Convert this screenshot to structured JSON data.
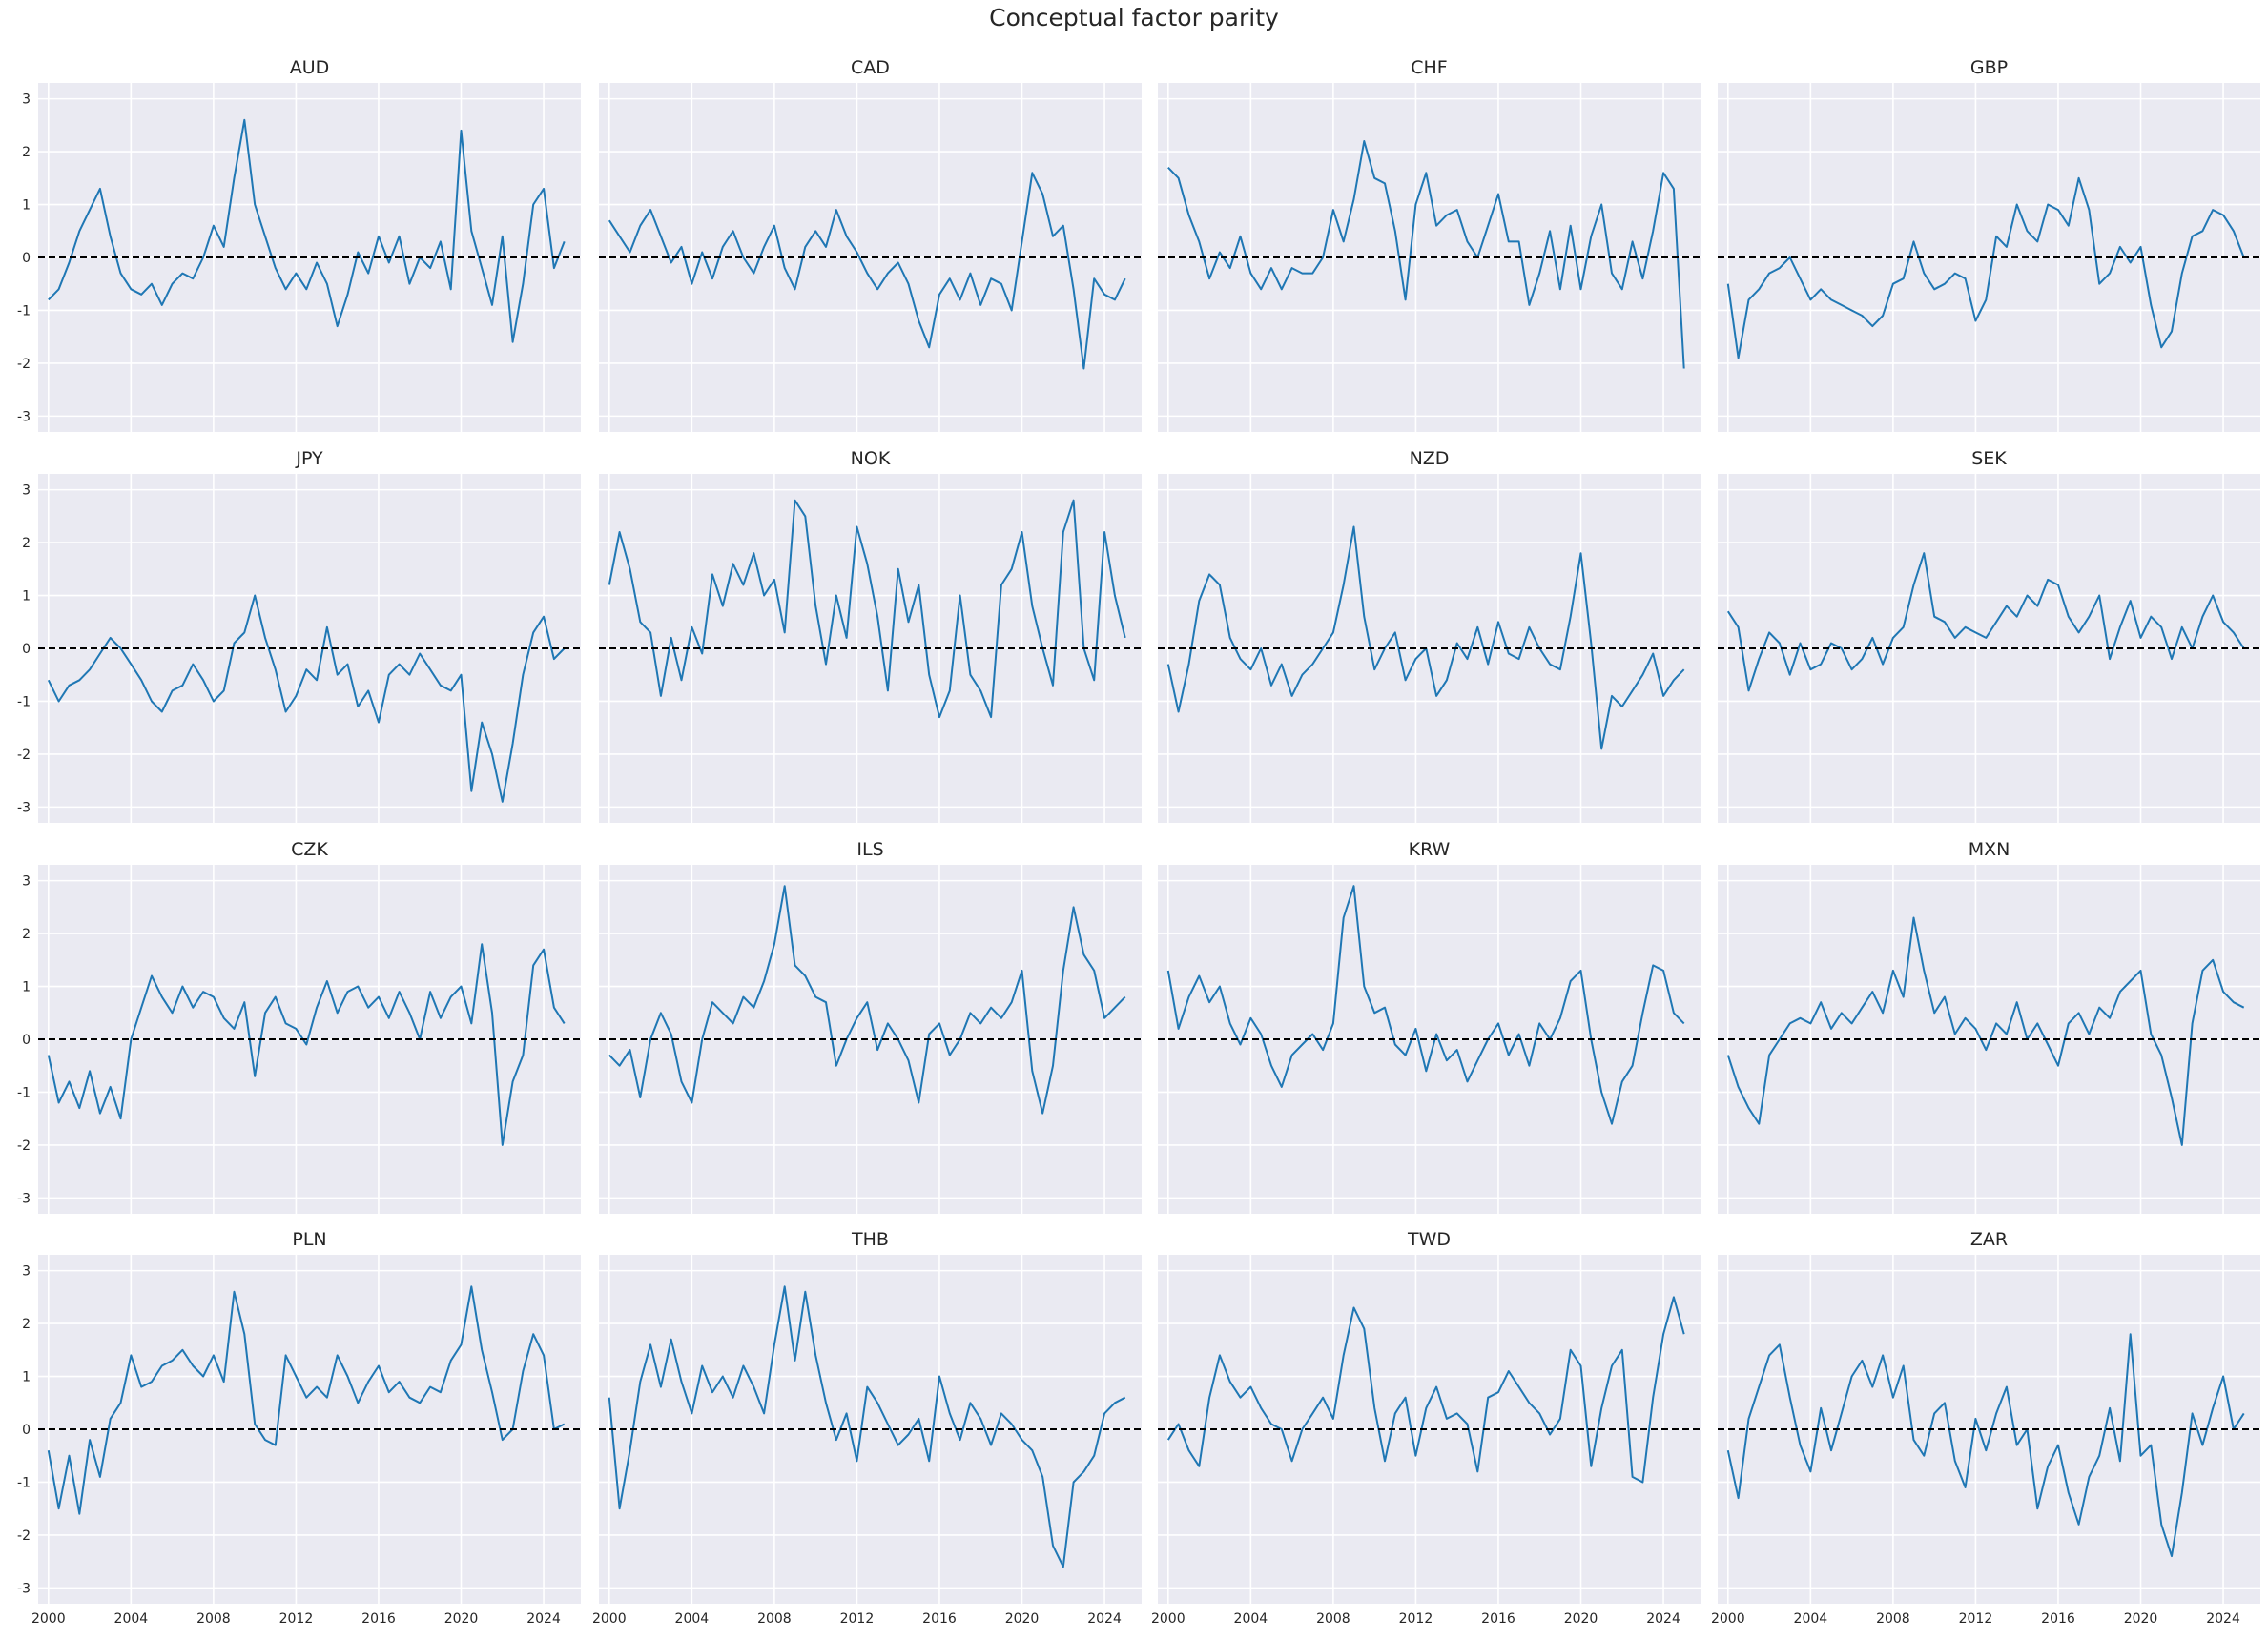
{
  "figure": {
    "title": "Conceptual factor parity"
  },
  "colors": {
    "line": "#1f77b4",
    "panel_bg": "#eaeaf2",
    "grid": "#ffffff",
    "zero_line": "#000000"
  },
  "chart_data": {
    "type": "line",
    "layout": "4x4 grid of small multiples, shared x and y axes",
    "xlim": [
      1999.5,
      2025.8
    ],
    "ylim": [
      -3.3,
      3.3
    ],
    "xticks": [
      "2000",
      "2004",
      "2008",
      "2012",
      "2016",
      "2020",
      "2024"
    ],
    "yticks": [
      "-3",
      "-2",
      "-1",
      "0",
      "1",
      "2",
      "3"
    ],
    "grid": true,
    "reference_line": {
      "y": 0,
      "style": "dashed"
    },
    "x_years": [
      2000.0,
      2000.5,
      2001.0,
      2001.5,
      2002.0,
      2002.5,
      2003.0,
      2003.5,
      2004.0,
      2004.5,
      2005.0,
      2005.5,
      2006.0,
      2006.5,
      2007.0,
      2007.5,
      2008.0,
      2008.5,
      2009.0,
      2009.5,
      2010.0,
      2010.5,
      2011.0,
      2011.5,
      2012.0,
      2012.5,
      2013.0,
      2013.5,
      2014.0,
      2014.5,
      2015.0,
      2015.5,
      2016.0,
      2016.5,
      2017.0,
      2017.5,
      2018.0,
      2018.5,
      2019.0,
      2019.5,
      2020.0,
      2020.5,
      2021.0,
      2021.5,
      2022.0,
      2022.5,
      2023.0,
      2023.5,
      2024.0,
      2024.5,
      2025.0
    ],
    "series": [
      {
        "name": "AUD",
        "values": [
          -0.8,
          -0.6,
          -0.1,
          0.5,
          0.9,
          1.3,
          0.4,
          -0.3,
          -0.6,
          -0.7,
          -0.5,
          -0.9,
          -0.5,
          -0.3,
          -0.4,
          0.0,
          0.6,
          0.2,
          1.5,
          2.6,
          1.0,
          0.4,
          -0.2,
          -0.6,
          -0.3,
          -0.6,
          -0.1,
          -0.5,
          -1.3,
          -0.7,
          0.1,
          -0.3,
          0.4,
          -0.1,
          0.4,
          -0.5,
          0.0,
          -0.2,
          0.3,
          -0.6,
          2.4,
          0.5,
          -0.2,
          -0.9,
          0.4,
          -1.6,
          -0.5,
          1.0,
          1.3,
          -0.2,
          0.3
        ]
      },
      {
        "name": "CAD",
        "values": [
          0.7,
          0.4,
          0.1,
          0.6,
          0.9,
          0.4,
          -0.1,
          0.2,
          -0.5,
          0.1,
          -0.4,
          0.2,
          0.5,
          0.0,
          -0.3,
          0.2,
          0.6,
          -0.2,
          -0.6,
          0.2,
          0.5,
          0.2,
          0.9,
          0.4,
          0.1,
          -0.3,
          -0.6,
          -0.3,
          -0.1,
          -0.5,
          -1.2,
          -1.7,
          -0.7,
          -0.4,
          -0.8,
          -0.3,
          -0.9,
          -0.4,
          -0.5,
          -1.0,
          0.3,
          1.6,
          1.2,
          0.4,
          0.6,
          -0.6,
          -2.1,
          -0.4,
          -0.7,
          -0.8,
          -0.4
        ]
      },
      {
        "name": "CHF",
        "values": [
          1.7,
          1.5,
          0.8,
          0.3,
          -0.4,
          0.1,
          -0.2,
          0.4,
          -0.3,
          -0.6,
          -0.2,
          -0.6,
          -0.2,
          -0.3,
          -0.3,
          0.0,
          0.9,
          0.3,
          1.1,
          2.2,
          1.5,
          1.4,
          0.5,
          -0.8,
          1.0,
          1.6,
          0.6,
          0.8,
          0.9,
          0.3,
          0.0,
          0.6,
          1.2,
          0.3,
          0.3,
          -0.9,
          -0.3,
          0.5,
          -0.6,
          0.6,
          -0.6,
          0.4,
          1.0,
          -0.3,
          -0.6,
          0.3,
          -0.4,
          0.5,
          1.6,
          1.3,
          -2.1
        ]
      },
      {
        "name": "GBP",
        "values": [
          -0.5,
          -1.9,
          -0.8,
          -0.6,
          -0.3,
          -0.2,
          0.0,
          -0.4,
          -0.8,
          -0.6,
          -0.8,
          -0.9,
          -1.0,
          -1.1,
          -1.3,
          -1.1,
          -0.5,
          -0.4,
          0.3,
          -0.3,
          -0.6,
          -0.5,
          -0.3,
          -0.4,
          -1.2,
          -0.8,
          0.4,
          0.2,
          1.0,
          0.5,
          0.3,
          1.0,
          0.9,
          0.6,
          1.5,
          0.9,
          -0.5,
          -0.3,
          0.2,
          -0.1,
          0.2,
          -0.9,
          -1.7,
          -1.4,
          -0.3,
          0.4,
          0.5,
          0.9,
          0.8,
          0.5,
          0.0
        ]
      },
      {
        "name": "JPY",
        "values": [
          -0.6,
          -1.0,
          -0.7,
          -0.6,
          -0.4,
          -0.1,
          0.2,
          0.0,
          -0.3,
          -0.6,
          -1.0,
          -1.2,
          -0.8,
          -0.7,
          -0.3,
          -0.6,
          -1.0,
          -0.8,
          0.1,
          0.3,
          1.0,
          0.2,
          -0.4,
          -1.2,
          -0.9,
          -0.4,
          -0.6,
          0.4,
          -0.5,
          -0.3,
          -1.1,
          -0.8,
          -1.4,
          -0.5,
          -0.3,
          -0.5,
          -0.1,
          -0.4,
          -0.7,
          -0.8,
          -0.5,
          -2.7,
          -1.4,
          -2.0,
          -2.9,
          -1.8,
          -0.5,
          0.3,
          0.6,
          -0.2,
          0.0
        ]
      },
      {
        "name": "NOK",
        "values": [
          1.2,
          2.2,
          1.5,
          0.5,
          0.3,
          -0.9,
          0.2,
          -0.6,
          0.4,
          -0.1,
          1.4,
          0.8,
          1.6,
          1.2,
          1.8,
          1.0,
          1.3,
          0.3,
          2.8,
          2.5,
          0.8,
          -0.3,
          1.0,
          0.2,
          2.3,
          1.6,
          0.6,
          -0.8,
          1.5,
          0.5,
          1.2,
          -0.5,
          -1.3,
          -0.8,
          1.0,
          -0.5,
          -0.8,
          -1.3,
          1.2,
          1.5,
          2.2,
          0.8,
          0.0,
          -0.7,
          2.2,
          2.8,
          0.0,
          -0.6,
          2.2,
          1.0,
          0.2
        ]
      },
      {
        "name": "NZD",
        "values": [
          -0.3,
          -1.2,
          -0.3,
          0.9,
          1.4,
          1.2,
          0.2,
          -0.2,
          -0.4,
          0.0,
          -0.7,
          -0.3,
          -0.9,
          -0.5,
          -0.3,
          0.0,
          0.3,
          1.2,
          2.3,
          0.6,
          -0.4,
          0.0,
          0.3,
          -0.6,
          -0.2,
          0.0,
          -0.9,
          -0.6,
          0.1,
          -0.2,
          0.4,
          -0.3,
          0.5,
          -0.1,
          -0.2,
          0.4,
          0.0,
          -0.3,
          -0.4,
          0.6,
          1.8,
          0.1,
          -1.9,
          -0.9,
          -1.1,
          -0.8,
          -0.5,
          -0.1,
          -0.9,
          -0.6,
          -0.4
        ]
      },
      {
        "name": "SEK",
        "values": [
          0.7,
          0.4,
          -0.8,
          -0.2,
          0.3,
          0.1,
          -0.5,
          0.1,
          -0.4,
          -0.3,
          0.1,
          0.0,
          -0.4,
          -0.2,
          0.2,
          -0.3,
          0.2,
          0.4,
          1.2,
          1.8,
          0.6,
          0.5,
          0.2,
          0.4,
          0.3,
          0.2,
          0.5,
          0.8,
          0.6,
          1.0,
          0.8,
          1.3,
          1.2,
          0.6,
          0.3,
          0.6,
          1.0,
          -0.2,
          0.4,
          0.9,
          0.2,
          0.6,
          0.4,
          -0.2,
          0.4,
          0.0,
          0.6,
          1.0,
          0.5,
          0.3,
          0.0
        ]
      },
      {
        "name": "CZK",
        "values": [
          -0.3,
          -1.2,
          -0.8,
          -1.3,
          -0.6,
          -1.4,
          -0.9,
          -1.5,
          0.0,
          0.6,
          1.2,
          0.8,
          0.5,
          1.0,
          0.6,
          0.9,
          0.8,
          0.4,
          0.2,
          0.7,
          -0.7,
          0.5,
          0.8,
          0.3,
          0.2,
          -0.1,
          0.6,
          1.1,
          0.5,
          0.9,
          1.0,
          0.6,
          0.8,
          0.4,
          0.9,
          0.5,
          0.0,
          0.9,
          0.4,
          0.8,
          1.0,
          0.3,
          1.8,
          0.5,
          -2.0,
          -0.8,
          -0.3,
          1.4,
          1.7,
          0.6,
          0.3
        ]
      },
      {
        "name": "ILS",
        "values": [
          -0.3,
          -0.5,
          -0.2,
          -1.1,
          0.0,
          0.5,
          0.1,
          -0.8,
          -1.2,
          0.0,
          0.7,
          0.5,
          0.3,
          0.8,
          0.6,
          1.1,
          1.8,
          2.9,
          1.4,
          1.2,
          0.8,
          0.7,
          -0.5,
          0.0,
          0.4,
          0.7,
          -0.2,
          0.3,
          0.0,
          -0.4,
          -1.2,
          0.1,
          0.3,
          -0.3,
          0.0,
          0.5,
          0.3,
          0.6,
          0.4,
          0.7,
          1.3,
          -0.6,
          -1.4,
          -0.5,
          1.3,
          2.5,
          1.6,
          1.3,
          0.4,
          0.6,
          0.8
        ]
      },
      {
        "name": "KRW",
        "values": [
          1.3,
          0.2,
          0.8,
          1.2,
          0.7,
          1.0,
          0.3,
          -0.1,
          0.4,
          0.1,
          -0.5,
          -0.9,
          -0.3,
          -0.1,
          0.1,
          -0.2,
          0.3,
          2.3,
          2.9,
          1.0,
          0.5,
          0.6,
          -0.1,
          -0.3,
          0.2,
          -0.6,
          0.1,
          -0.4,
          -0.2,
          -0.8,
          -0.4,
          0.0,
          0.3,
          -0.3,
          0.1,
          -0.5,
          0.3,
          0.0,
          0.4,
          1.1,
          1.3,
          0.0,
          -1.0,
          -1.6,
          -0.8,
          -0.5,
          0.5,
          1.4,
          1.3,
          0.5,
          0.3
        ]
      },
      {
        "name": "MXN",
        "values": [
          -0.3,
          -0.9,
          -1.3,
          -1.6,
          -0.3,
          0.0,
          0.3,
          0.4,
          0.3,
          0.7,
          0.2,
          0.5,
          0.3,
          0.6,
          0.9,
          0.5,
          1.3,
          0.8,
          2.3,
          1.3,
          0.5,
          0.8,
          0.1,
          0.4,
          0.2,
          -0.2,
          0.3,
          0.1,
          0.7,
          0.0,
          0.3,
          -0.1,
          -0.5,
          0.3,
          0.5,
          0.1,
          0.6,
          0.4,
          0.9,
          1.1,
          1.3,
          0.1,
          -0.3,
          -1.1,
          -2.0,
          0.3,
          1.3,
          1.5,
          0.9,
          0.7,
          0.6
        ]
      },
      {
        "name": "PLN",
        "values": [
          -0.4,
          -1.5,
          -0.5,
          -1.6,
          -0.2,
          -0.9,
          0.2,
          0.5,
          1.4,
          0.8,
          0.9,
          1.2,
          1.3,
          1.5,
          1.2,
          1.0,
          1.4,
          0.9,
          2.6,
          1.8,
          0.1,
          -0.2,
          -0.3,
          1.4,
          1.0,
          0.6,
          0.8,
          0.6,
          1.4,
          1.0,
          0.5,
          0.9,
          1.2,
          0.7,
          0.9,
          0.6,
          0.5,
          0.8,
          0.7,
          1.3,
          1.6,
          2.7,
          1.5,
          0.7,
          -0.2,
          0.0,
          1.1,
          1.8,
          1.4,
          0.0,
          0.1
        ]
      },
      {
        "name": "THB",
        "values": [
          0.6,
          -1.5,
          -0.4,
          0.9,
          1.6,
          0.8,
          1.7,
          0.9,
          0.3,
          1.2,
          0.7,
          1.0,
          0.6,
          1.2,
          0.8,
          0.3,
          1.6,
          2.7,
          1.3,
          2.6,
          1.4,
          0.5,
          -0.2,
          0.3,
          -0.6,
          0.8,
          0.5,
          0.1,
          -0.3,
          -0.1,
          0.2,
          -0.6,
          1.0,
          0.3,
          -0.2,
          0.5,
          0.2,
          -0.3,
          0.3,
          0.1,
          -0.2,
          -0.4,
          -0.9,
          -2.2,
          -2.6,
          -1.0,
          -0.8,
          -0.5,
          0.3,
          0.5,
          0.6
        ]
      },
      {
        "name": "TWD",
        "values": [
          -0.2,
          0.1,
          -0.4,
          -0.7,
          0.6,
          1.4,
          0.9,
          0.6,
          0.8,
          0.4,
          0.1,
          0.0,
          -0.6,
          0.0,
          0.3,
          0.6,
          0.2,
          1.4,
          2.3,
          1.9,
          0.4,
          -0.6,
          0.3,
          0.6,
          -0.5,
          0.4,
          0.8,
          0.2,
          0.3,
          0.1,
          -0.8,
          0.6,
          0.7,
          1.1,
          0.8,
          0.5,
          0.3,
          -0.1,
          0.2,
          1.5,
          1.2,
          -0.7,
          0.4,
          1.2,
          1.5,
          -0.9,
          -1.0,
          0.6,
          1.8,
          2.5,
          1.8
        ]
      },
      {
        "name": "ZAR",
        "values": [
          -0.4,
          -1.3,
          0.2,
          0.8,
          1.4,
          1.6,
          0.6,
          -0.3,
          -0.8,
          0.4,
          -0.4,
          0.3,
          1.0,
          1.3,
          0.8,
          1.4,
          0.6,
          1.2,
          -0.2,
          -0.5,
          0.3,
          0.5,
          -0.6,
          -1.1,
          0.2,
          -0.4,
          0.3,
          0.8,
          -0.3,
          0.0,
          -1.5,
          -0.7,
          -0.3,
          -1.2,
          -1.8,
          -0.9,
          -0.5,
          0.4,
          -0.6,
          1.8,
          -0.5,
          -0.3,
          -1.8,
          -2.4,
          -1.2,
          0.3,
          -0.3,
          0.4,
          1.0,
          0.0,
          0.3
        ]
      }
    ]
  }
}
